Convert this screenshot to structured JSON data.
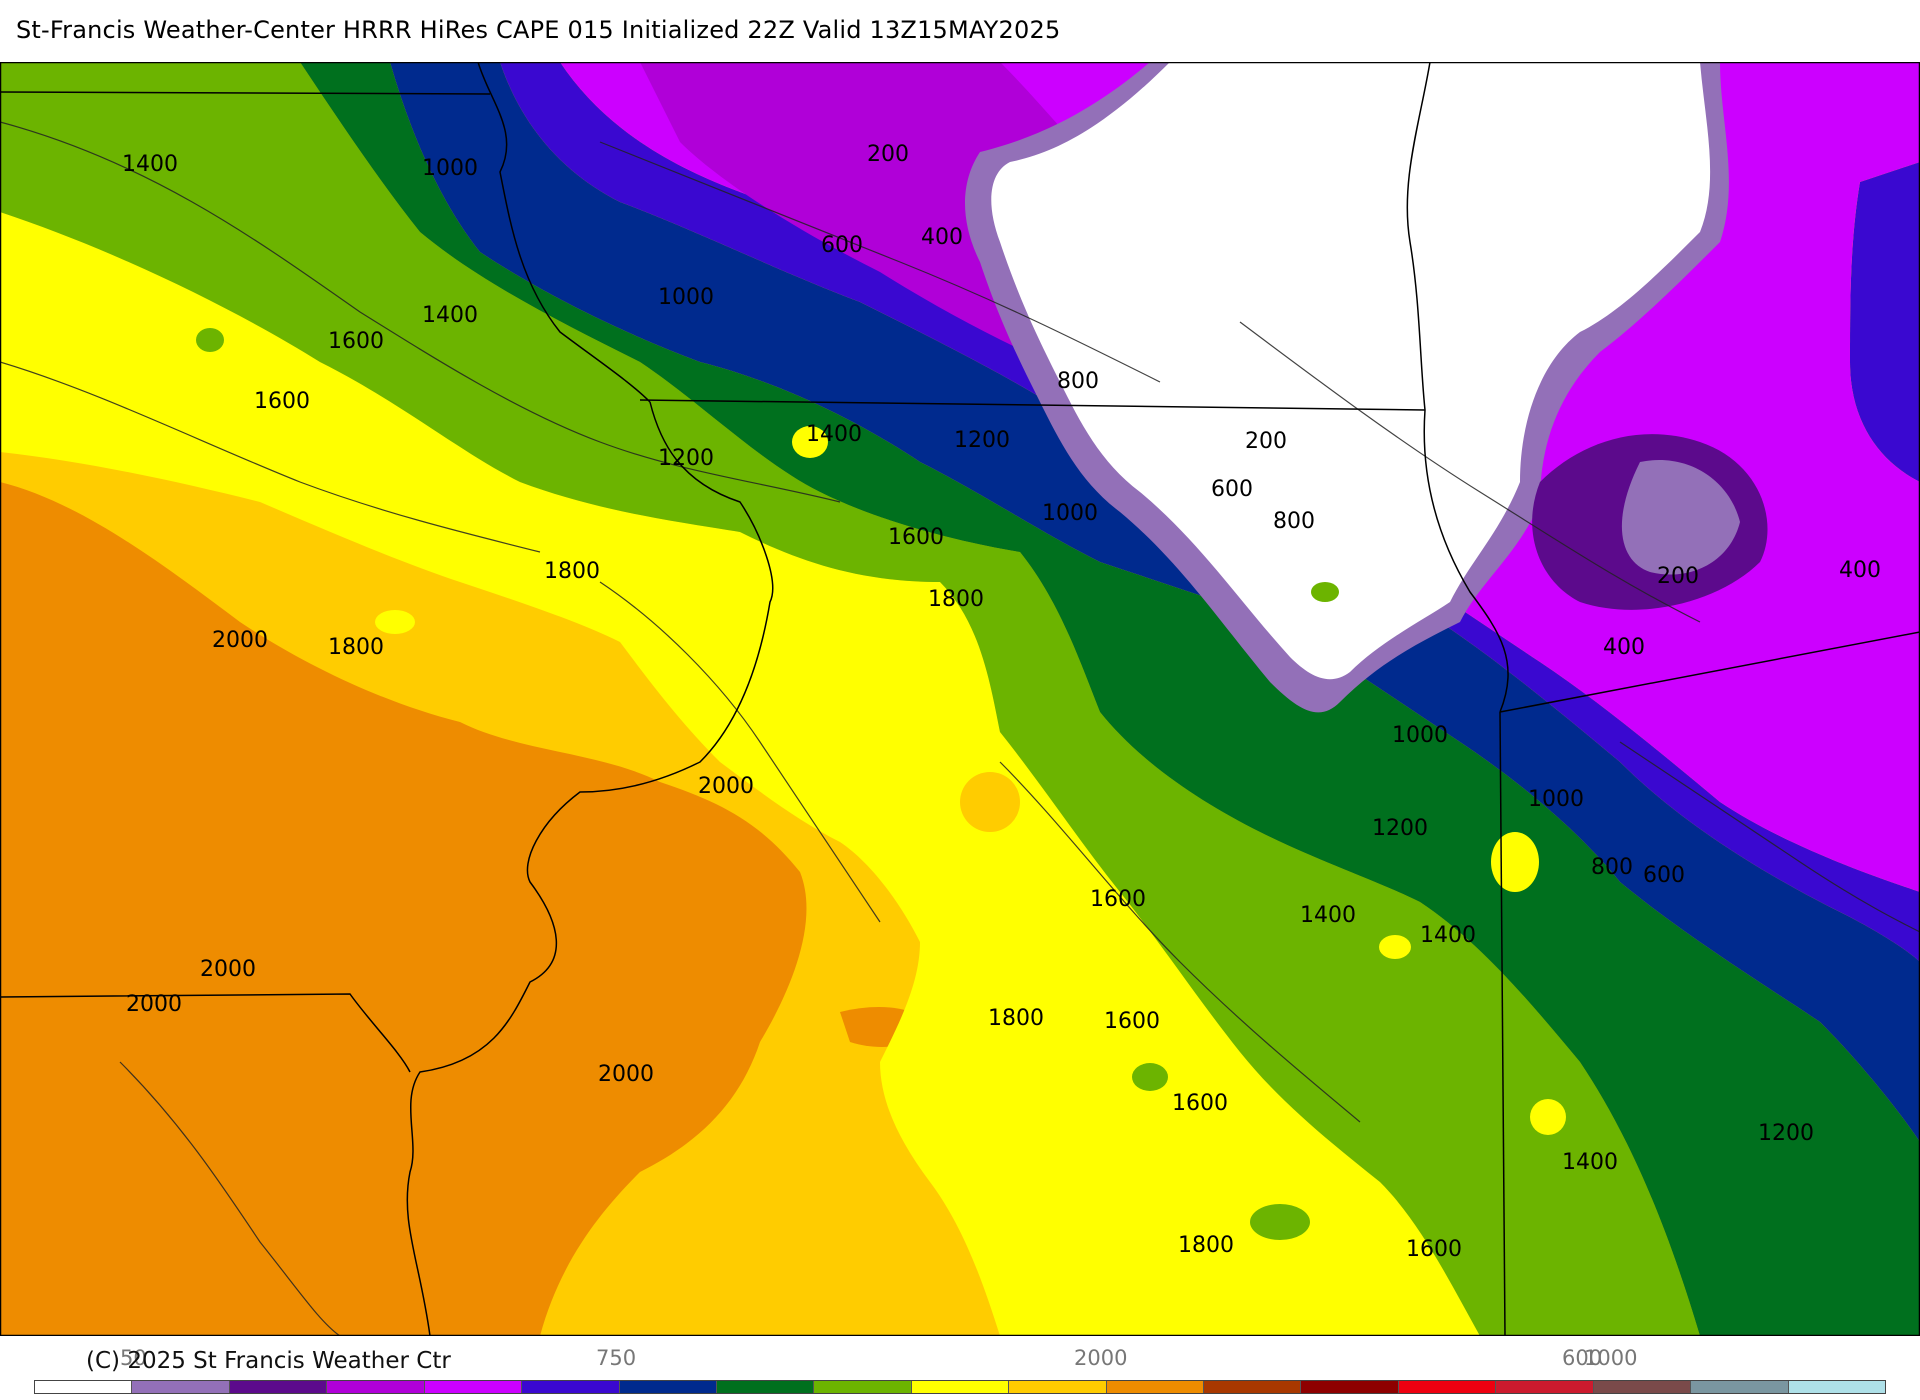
{
  "header": {
    "title": "St-Francis Weather-Center HRRR HiRes CAPE  015 Initialized  22Z Valid 13Z15MAY2025"
  },
  "footer": {
    "copyright": "(C) 2025 St Francis Weather Ctr"
  },
  "legend": {
    "tick_labels": [
      "50",
      "750",
      "2000",
      "600",
      "1000"
    ],
    "swatch_colors": [
      "#ffffff",
      "#9370b8",
      "#5c0a8c",
      "#b000d8",
      "#cc00ff",
      "#3a08d0",
      "#002a8e",
      "#00701e",
      "#6cb400",
      "#ffff00",
      "#ffcc00",
      "#ee8c00",
      "#a83800",
      "#8e0000",
      "#ee0010",
      "#cc1a2e",
      "#7a4a4a",
      "#7a96a0",
      "#aee0e8"
    ]
  },
  "map": {
    "contour_labels": [
      "1400",
      "1000",
      "200",
      "400",
      "600",
      "1000",
      "1400",
      "1600",
      "1600",
      "800",
      "1400",
      "1200",
      "1200",
      "200",
      "600",
      "800",
      "1000",
      "1600",
      "1800",
      "1800",
      "1800",
      "2000",
      "2000",
      "200",
      "400",
      "400",
      "1000",
      "1000",
      "1200",
      "800",
      "600",
      "1600",
      "1400",
      "1400",
      "2000",
      "2000",
      "1800",
      "1600",
      "2000",
      "1600",
      "1400",
      "1200",
      "1800",
      "1600"
    ],
    "band_colors": {
      "white": "#ffffff",
      "lavender": "#9370b8",
      "dark_purple": "#5c0a8c",
      "magenta": "#cc00ff",
      "violet": "#b000d8",
      "blue_violet": "#3a08d0",
      "navy": "#002a8e",
      "dark_green": "#00701e",
      "green": "#6cb400",
      "yellow": "#ffff00",
      "gold": "#ffcc00",
      "orange": "#ee8c00"
    }
  }
}
